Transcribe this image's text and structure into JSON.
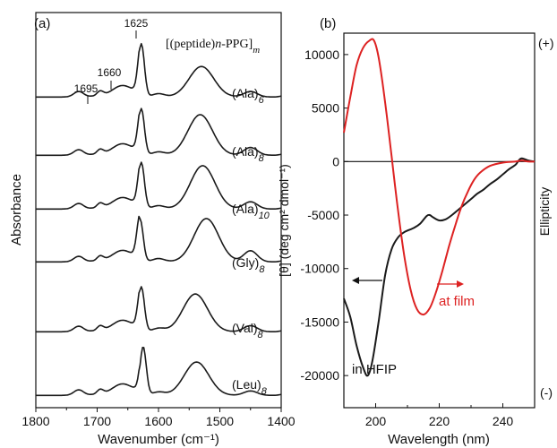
{
  "chart_data": [
    {
      "type": "line",
      "panel_label": "(a)",
      "xlabel": "Wavenumber (cm⁻¹)",
      "ylabel": "Absorbance",
      "xlim": [
        1800,
        1400
      ],
      "xticks": [
        "1800",
        "1700",
        "1600",
        "1500",
        "1400"
      ],
      "legend_title": "[(peptide)n-PPG]m",
      "annotations": [
        "1625",
        "1660",
        "1695"
      ],
      "series": [
        {
          "name": "(Ala)6",
          "color": "#1a1a1a"
        },
        {
          "name": "(Ala)8",
          "color": "#1a1a1a"
        },
        {
          "name": "(Ala)10",
          "color": "#1a1a1a"
        },
        {
          "name": "(Gly)8",
          "color": "#1a1a1a"
        },
        {
          "name": "(Val)8",
          "color": "#1a1a1a"
        },
        {
          "name": "(Leu)8",
          "color": "#1a1a1a"
        }
      ]
    },
    {
      "type": "line",
      "panel_label": "(b)",
      "xlabel": "Wavelength (nm)",
      "ylabel": "[θ] (deg cm² dmol⁻¹)",
      "right_label": "Ellipticity",
      "right_top": "(+)",
      "right_bottom": "(-)",
      "xlim": [
        190,
        250
      ],
      "ylim": [
        -23000,
        12000
      ],
      "xticks": [
        200,
        220,
        240
      ],
      "yticks": [
        10000,
        5000,
        0,
        -5000,
        -10000,
        -15000,
        -20000
      ],
      "series": [
        {
          "name": "in HFIP",
          "color": "#1a1a1a",
          "x": [
            190,
            192,
            194,
            196,
            197.5,
            199,
            201,
            203,
            205,
            207,
            209,
            212,
            214,
            216,
            217,
            218,
            220,
            222,
            224,
            226,
            228,
            230,
            232,
            234,
            236,
            238,
            240,
            242,
            244,
            245,
            246,
            248,
            250
          ],
          "y": [
            -12800,
            -14500,
            -17200,
            -19200,
            -20000,
            -18600,
            -14800,
            -10600,
            -8200,
            -7100,
            -6600,
            -6200,
            -5800,
            -5100,
            -5000,
            -5200,
            -5500,
            -5400,
            -5000,
            -4500,
            -4000,
            -3500,
            -3000,
            -2600,
            -2100,
            -1700,
            -1200,
            -700,
            -300,
            100,
            300,
            100,
            0
          ]
        },
        {
          "name": "at film",
          "color": "#dd2222",
          "x": [
            190,
            192,
            194,
            196,
            198,
            199.5,
            201,
            203,
            205,
            207,
            209,
            211,
            213,
            215,
            217,
            219,
            221,
            223,
            225,
            227,
            229,
            231,
            233,
            236,
            240,
            244,
            246,
            248,
            250
          ],
          "y": [
            2700,
            6000,
            9000,
            10600,
            11300,
            11300,
            9600,
            5500,
            500,
            -4500,
            -8800,
            -12000,
            -13800,
            -14300,
            -13700,
            -12200,
            -10200,
            -8000,
            -6000,
            -4200,
            -2800,
            -1700,
            -1000,
            -400,
            -100,
            0,
            100,
            0,
            0
          ]
        }
      ]
    }
  ]
}
